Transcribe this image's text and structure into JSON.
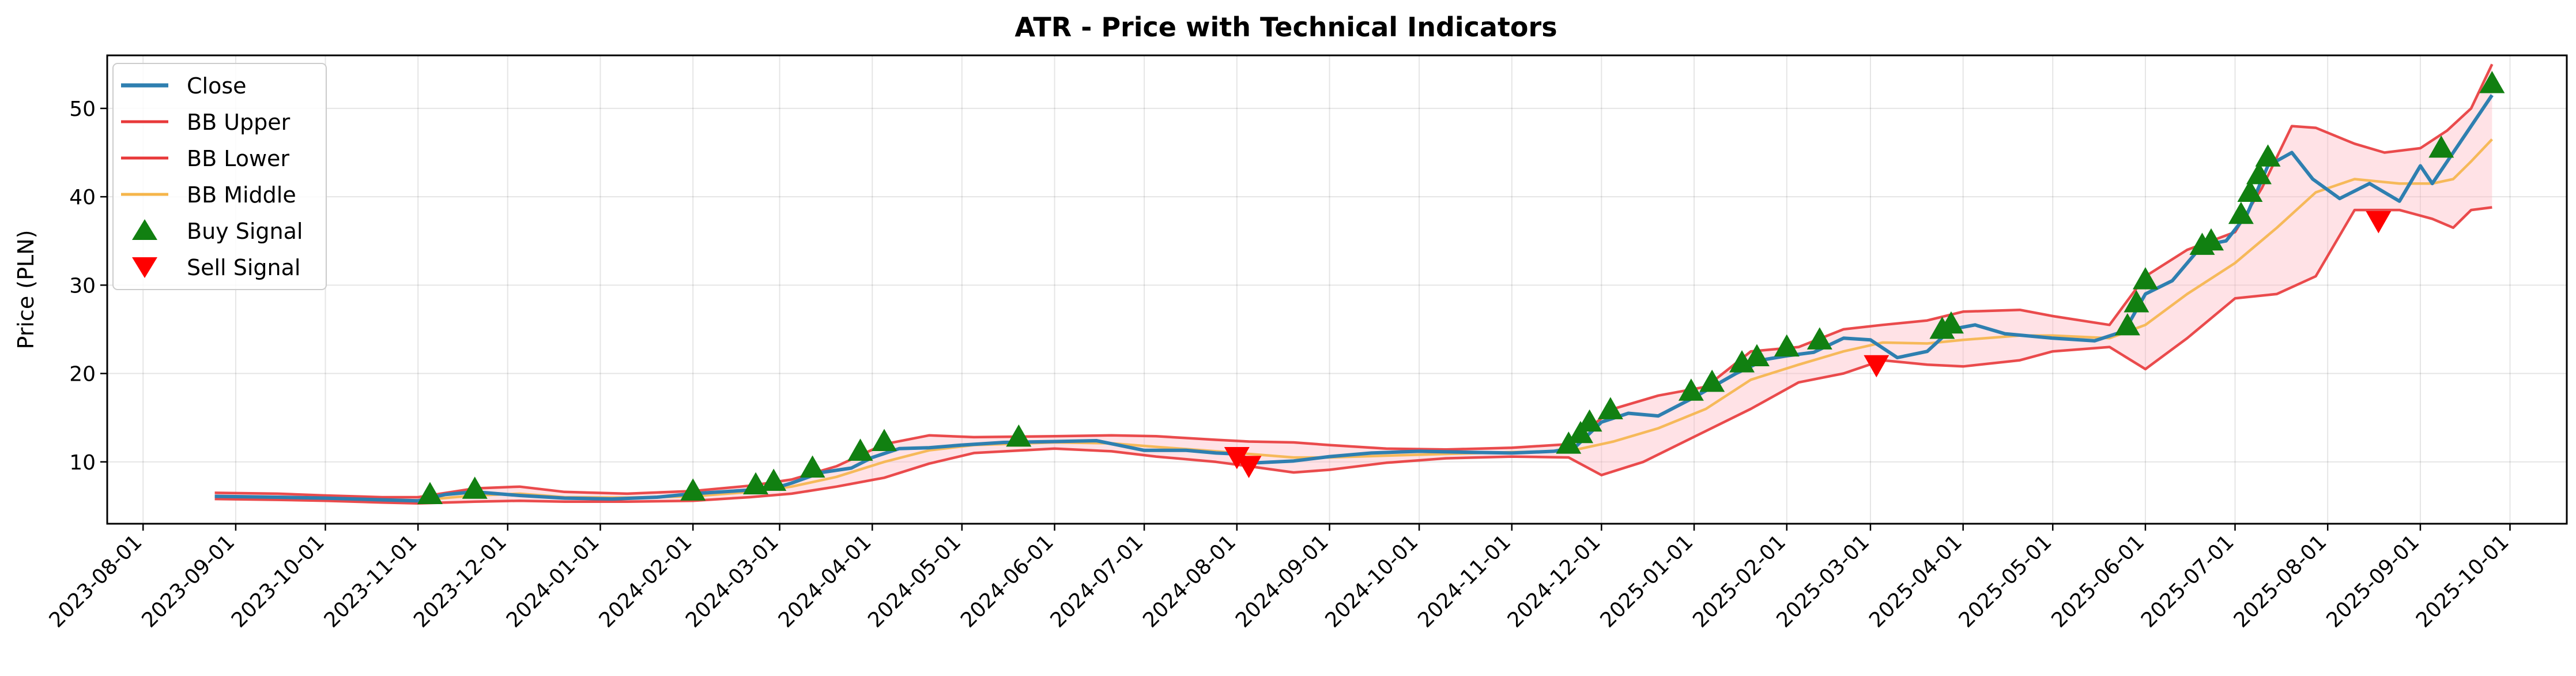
{
  "chart_data": {
    "type": "line",
    "title": "ATR - Price with Technical Indicators",
    "xlabel": "",
    "ylabel": "Price (PLN)",
    "ylim": [
      3,
      56
    ],
    "xlim": [
      "2023-07-20",
      "2025-10-20"
    ],
    "grid": true,
    "legend_position": "upper-left",
    "x_ticks": [
      "2023-08-01",
      "2023-09-01",
      "2023-10-01",
      "2023-11-01",
      "2023-12-01",
      "2024-01-01",
      "2024-02-01",
      "2024-03-01",
      "2024-04-01",
      "2024-05-01",
      "2024-06-01",
      "2024-07-01",
      "2024-08-01",
      "2024-09-01",
      "2024-10-01",
      "2024-11-01",
      "2024-12-01",
      "2025-01-01",
      "2025-02-01",
      "2025-03-01",
      "2025-04-01",
      "2025-05-01",
      "2025-06-01",
      "2025-07-01",
      "2025-08-01",
      "2025-09-01",
      "2025-10-01"
    ],
    "y_ticks": [
      10,
      20,
      30,
      40,
      50
    ],
    "series": [
      {
        "name": "Close",
        "color": "#2e7fb0",
        "points": [
          [
            "2023-08-25",
            6.1
          ],
          [
            "2023-09-15",
            6.0
          ],
          [
            "2023-10-01",
            5.9
          ],
          [
            "2023-10-20",
            5.7
          ],
          [
            "2023-11-01",
            5.6
          ],
          [
            "2023-11-10",
            6.3
          ],
          [
            "2023-11-20",
            6.6
          ],
          [
            "2023-12-05",
            6.2
          ],
          [
            "2023-12-20",
            5.9
          ],
          [
            "2024-01-05",
            5.8
          ],
          [
            "2024-01-20",
            6.0
          ],
          [
            "2024-02-01",
            6.4
          ],
          [
            "2024-02-15",
            6.7
          ],
          [
            "2024-02-28",
            7.0
          ],
          [
            "2024-03-05",
            7.6
          ],
          [
            "2024-03-15",
            8.8
          ],
          [
            "2024-03-25",
            9.3
          ],
          [
            "2024-04-01",
            10.5
          ],
          [
            "2024-04-10",
            11.5
          ],
          [
            "2024-04-20",
            11.6
          ],
          [
            "2024-05-01",
            11.9
          ],
          [
            "2024-05-15",
            12.2
          ],
          [
            "2024-06-01",
            12.3
          ],
          [
            "2024-06-15",
            12.4
          ],
          [
            "2024-07-01",
            11.3
          ],
          [
            "2024-07-15",
            11.3
          ],
          [
            "2024-07-25",
            11.0
          ],
          [
            "2024-08-01",
            10.9
          ],
          [
            "2024-08-08",
            9.9
          ],
          [
            "2024-08-20",
            10.1
          ],
          [
            "2024-09-01",
            10.6
          ],
          [
            "2024-09-15",
            11.0
          ],
          [
            "2024-10-01",
            11.2
          ],
          [
            "2024-10-15",
            11.1
          ],
          [
            "2024-11-01",
            11.0
          ],
          [
            "2024-11-15",
            11.2
          ],
          [
            "2024-11-22",
            11.6
          ],
          [
            "2024-12-01",
            14.5
          ],
          [
            "2024-12-10",
            15.5
          ],
          [
            "2024-12-20",
            15.2
          ],
          [
            "2025-01-01",
            17.3
          ],
          [
            "2025-01-15",
            20.0
          ],
          [
            "2025-01-25",
            21.6
          ],
          [
            "2025-02-01",
            22.0
          ],
          [
            "2025-02-10",
            22.4
          ],
          [
            "2025-02-20",
            24.0
          ],
          [
            "2025-03-01",
            23.8
          ],
          [
            "2025-03-10",
            21.8
          ],
          [
            "2025-03-20",
            22.5
          ],
          [
            "2025-03-28",
            25.0
          ],
          [
            "2025-04-05",
            25.5
          ],
          [
            "2025-04-15",
            24.5
          ],
          [
            "2025-05-01",
            24.0
          ],
          [
            "2025-05-15",
            23.7
          ],
          [
            "2025-05-25",
            24.8
          ],
          [
            "2025-06-01",
            29.0
          ],
          [
            "2025-06-10",
            30.5
          ],
          [
            "2025-06-20",
            34.5
          ],
          [
            "2025-06-28",
            35.0
          ],
          [
            "2025-07-05",
            38.0
          ],
          [
            "2025-07-12",
            43.5
          ],
          [
            "2025-07-20",
            45.0
          ],
          [
            "2025-07-27",
            42.0
          ],
          [
            "2025-08-05",
            39.8
          ],
          [
            "2025-08-15",
            41.5
          ],
          [
            "2025-08-25",
            39.5
          ],
          [
            "2025-09-01",
            43.5
          ],
          [
            "2025-09-05",
            41.5
          ],
          [
            "2025-09-12",
            45.0
          ],
          [
            "2025-09-18",
            48.0
          ],
          [
            "2025-09-25",
            51.5
          ]
        ]
      },
      {
        "name": "BB Upper",
        "color": "#e8393a",
        "points": [
          [
            "2023-08-25",
            6.5
          ],
          [
            "2023-09-15",
            6.4
          ],
          [
            "2023-10-01",
            6.2
          ],
          [
            "2023-10-20",
            6.0
          ],
          [
            "2023-11-01",
            6.0
          ],
          [
            "2023-11-20",
            7.0
          ],
          [
            "2023-12-05",
            7.2
          ],
          [
            "2023-12-20",
            6.6
          ],
          [
            "2024-01-10",
            6.4
          ],
          [
            "2024-02-01",
            6.7
          ],
          [
            "2024-02-20",
            7.3
          ],
          [
            "2024-03-05",
            8.0
          ],
          [
            "2024-03-20",
            9.5
          ],
          [
            "2024-04-05",
            12.0
          ],
          [
            "2024-04-20",
            13.0
          ],
          [
            "2024-05-05",
            12.8
          ],
          [
            "2024-06-01",
            12.9
          ],
          [
            "2024-06-20",
            13.0
          ],
          [
            "2024-07-05",
            12.9
          ],
          [
            "2024-07-25",
            12.5
          ],
          [
            "2024-08-05",
            12.3
          ],
          [
            "2024-08-20",
            12.2
          ],
          [
            "2024-09-01",
            11.9
          ],
          [
            "2024-09-20",
            11.5
          ],
          [
            "2024-10-10",
            11.4
          ],
          [
            "2024-11-01",
            11.6
          ],
          [
            "2024-11-20",
            12.0
          ],
          [
            "2024-12-05",
            16.0
          ],
          [
            "2024-12-20",
            17.5
          ],
          [
            "2025-01-05",
            18.5
          ],
          [
            "2025-01-20",
            22.5
          ],
          [
            "2025-02-05",
            23.0
          ],
          [
            "2025-02-20",
            25.0
          ],
          [
            "2025-03-05",
            25.5
          ],
          [
            "2025-03-20",
            26.0
          ],
          [
            "2025-04-01",
            27.0
          ],
          [
            "2025-04-20",
            27.2
          ],
          [
            "2025-05-01",
            26.5
          ],
          [
            "2025-05-20",
            25.5
          ],
          [
            "2025-06-01",
            31.0
          ],
          [
            "2025-06-15",
            34.0
          ],
          [
            "2025-07-01",
            36.0
          ],
          [
            "2025-07-10",
            41.0
          ],
          [
            "2025-07-20",
            48.0
          ],
          [
            "2025-07-28",
            47.8
          ],
          [
            "2025-08-10",
            46.0
          ],
          [
            "2025-08-20",
            45.0
          ],
          [
            "2025-09-01",
            45.5
          ],
          [
            "2025-09-10",
            47.5
          ],
          [
            "2025-09-18",
            50.0
          ],
          [
            "2025-09-25",
            55.0
          ]
        ]
      },
      {
        "name": "BB Lower",
        "color": "#e8393a",
        "points": [
          [
            "2023-08-25",
            5.8
          ],
          [
            "2023-09-15",
            5.7
          ],
          [
            "2023-10-01",
            5.6
          ],
          [
            "2023-10-20",
            5.4
          ],
          [
            "2023-11-01",
            5.3
          ],
          [
            "2023-11-20",
            5.5
          ],
          [
            "2023-12-05",
            5.6
          ],
          [
            "2023-12-20",
            5.5
          ],
          [
            "2024-01-10",
            5.5
          ],
          [
            "2024-02-01",
            5.6
          ],
          [
            "2024-02-20",
            6.0
          ],
          [
            "2024-03-05",
            6.4
          ],
          [
            "2024-03-20",
            7.2
          ],
          [
            "2024-04-05",
            8.2
          ],
          [
            "2024-04-20",
            9.8
          ],
          [
            "2024-05-05",
            11.0
          ],
          [
            "2024-06-01",
            11.5
          ],
          [
            "2024-06-20",
            11.2
          ],
          [
            "2024-07-05",
            10.6
          ],
          [
            "2024-07-25",
            10.0
          ],
          [
            "2024-08-05",
            9.5
          ],
          [
            "2024-08-20",
            8.8
          ],
          [
            "2024-09-01",
            9.1
          ],
          [
            "2024-09-20",
            9.9
          ],
          [
            "2024-10-10",
            10.4
          ],
          [
            "2024-11-01",
            10.6
          ],
          [
            "2024-11-20",
            10.5
          ],
          [
            "2024-12-01",
            8.5
          ],
          [
            "2024-12-15",
            10.0
          ],
          [
            "2025-01-05",
            13.5
          ],
          [
            "2025-01-20",
            16.0
          ],
          [
            "2025-02-05",
            19.0
          ],
          [
            "2025-02-20",
            20.0
          ],
          [
            "2025-03-05",
            21.5
          ],
          [
            "2025-03-20",
            21.0
          ],
          [
            "2025-04-01",
            20.8
          ],
          [
            "2025-04-20",
            21.5
          ],
          [
            "2025-05-01",
            22.5
          ],
          [
            "2025-05-20",
            23.0
          ],
          [
            "2025-06-01",
            20.5
          ],
          [
            "2025-06-15",
            24.0
          ],
          [
            "2025-07-01",
            28.5
          ],
          [
            "2025-07-15",
            29.0
          ],
          [
            "2025-07-28",
            31.0
          ],
          [
            "2025-08-10",
            38.5
          ],
          [
            "2025-08-25",
            38.5
          ],
          [
            "2025-09-05",
            37.5
          ],
          [
            "2025-09-12",
            36.5
          ],
          [
            "2025-09-18",
            38.5
          ],
          [
            "2025-09-25",
            38.8
          ]
        ]
      },
      {
        "name": "BB Middle",
        "color": "#f5b54a",
        "points": [
          [
            "2023-08-25",
            6.1
          ],
          [
            "2023-09-15",
            6.05
          ],
          [
            "2023-10-01",
            5.9
          ],
          [
            "2023-10-20",
            5.7
          ],
          [
            "2023-11-01",
            5.65
          ],
          [
            "2023-11-20",
            6.2
          ],
          [
            "2023-12-05",
            6.4
          ],
          [
            "2023-12-20",
            6.0
          ],
          [
            "2024-01-10",
            5.95
          ],
          [
            "2024-02-01",
            6.1
          ],
          [
            "2024-02-20",
            6.6
          ],
          [
            "2024-03-05",
            7.2
          ],
          [
            "2024-03-20",
            8.3
          ],
          [
            "2024-04-05",
            10.0
          ],
          [
            "2024-04-20",
            11.3
          ],
          [
            "2024-05-05",
            11.9
          ],
          [
            "2024-06-01",
            12.2
          ],
          [
            "2024-06-20",
            12.1
          ],
          [
            "2024-07-05",
            11.7
          ],
          [
            "2024-07-25",
            11.2
          ],
          [
            "2024-08-05",
            10.9
          ],
          [
            "2024-08-20",
            10.5
          ],
          [
            "2024-09-01",
            10.5
          ],
          [
            "2024-09-20",
            10.7
          ],
          [
            "2024-10-10",
            10.9
          ],
          [
            "2024-11-01",
            11.1
          ],
          [
            "2024-11-20",
            11.2
          ],
          [
            "2024-12-05",
            12.3
          ],
          [
            "2024-12-20",
            13.8
          ],
          [
            "2025-01-05",
            16.0
          ],
          [
            "2025-01-20",
            19.3
          ],
          [
            "2025-02-05",
            21.0
          ],
          [
            "2025-02-20",
            22.5
          ],
          [
            "2025-03-05",
            23.5
          ],
          [
            "2025-03-20",
            23.4
          ],
          [
            "2025-04-01",
            23.8
          ],
          [
            "2025-04-20",
            24.3
          ],
          [
            "2025-05-01",
            24.3
          ],
          [
            "2025-05-20",
            24.0
          ],
          [
            "2025-06-01",
            25.5
          ],
          [
            "2025-06-15",
            29.0
          ],
          [
            "2025-07-01",
            32.5
          ],
          [
            "2025-07-15",
            36.5
          ],
          [
            "2025-07-28",
            40.5
          ],
          [
            "2025-08-10",
            42.0
          ],
          [
            "2025-08-25",
            41.5
          ],
          [
            "2025-09-05",
            41.5
          ],
          [
            "2025-09-12",
            42.0
          ],
          [
            "2025-09-18",
            44.0
          ],
          [
            "2025-09-25",
            46.5
          ]
        ]
      }
    ],
    "buy_signals": {
      "name": "Buy Signal",
      "color": "#118011",
      "points": [
        [
          "2023-11-05",
          6.3
        ],
        [
          "2023-11-20",
          6.9
        ],
        [
          "2024-02-01",
          6.7
        ],
        [
          "2024-02-22",
          7.4
        ],
        [
          "2024-02-28",
          7.8
        ],
        [
          "2024-03-12",
          9.3
        ],
        [
          "2024-03-28",
          11.2
        ],
        [
          "2024-04-05",
          12.3
        ],
        [
          "2024-05-20",
          12.8
        ],
        [
          "2024-11-20",
          12.0
        ],
        [
          "2024-11-24",
          13.2
        ],
        [
          "2024-11-27",
          14.5
        ],
        [
          "2024-12-04",
          15.9
        ],
        [
          "2024-12-31",
          18.0
        ],
        [
          "2025-01-07",
          19.0
        ],
        [
          "2025-01-17",
          21.2
        ],
        [
          "2025-01-22",
          21.9
        ],
        [
          "2025-02-01",
          23.0
        ],
        [
          "2025-02-12",
          23.8
        ],
        [
          "2025-03-25",
          25.0
        ],
        [
          "2025-03-28",
          25.6
        ],
        [
          "2025-05-26",
          25.4
        ],
        [
          "2025-05-29",
          28.0
        ],
        [
          "2025-06-01",
          30.6
        ],
        [
          "2025-06-20",
          34.5
        ],
        [
          "2025-06-23",
          35.0
        ],
        [
          "2025-07-03",
          38.0
        ],
        [
          "2025-07-06",
          40.5
        ],
        [
          "2025-07-09",
          42.5
        ],
        [
          "2025-07-12",
          44.5
        ],
        [
          "2025-09-08",
          45.5
        ],
        [
          "2025-09-25",
          52.8
        ]
      ]
    },
    "sell_signals": {
      "name": "Sell Signal",
      "color": "#ff0000",
      "points": [
        [
          "2024-08-01",
          10.6
        ],
        [
          "2024-08-05",
          9.6
        ],
        [
          "2025-03-03",
          21.0
        ],
        [
          "2025-08-18",
          37.3
        ]
      ]
    }
  }
}
